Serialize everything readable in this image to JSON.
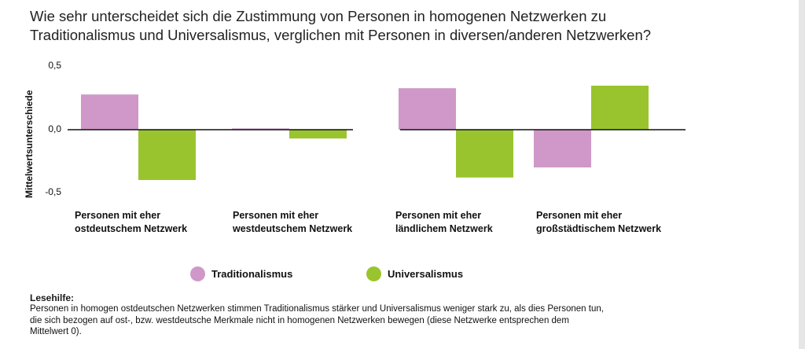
{
  "title_line1": "Wie sehr unterscheidet sich die Zustimmung von Personen in homogenen Netzwerken zu",
  "title_line2": "Traditionalismus und Universalismus, verglichen mit Personen in diversen/anderen Netzwerken?",
  "chart_data": {
    "type": "bar",
    "ylabel": "Mittelwertsunterschiede",
    "ylim": [
      -0.5,
      0.5
    ],
    "yticks": [
      "0,5",
      "0,0",
      "-0,5"
    ],
    "grid": false,
    "legend_position": "bottom",
    "categories": [
      [
        "Personen mit eher",
        "ostdeutschem Netzwerk"
      ],
      [
        "Personen mit eher",
        "westdeutschem Netzwerk"
      ],
      [
        "Personen mit eher",
        "ländlichem Netzwerk"
      ],
      [
        "Personen mit eher",
        "großstädtischem Netzwerk"
      ]
    ],
    "series": [
      {
        "name": "Traditionalismus",
        "color": "#cf98c8",
        "values": [
          0.28,
          0.01,
          0.33,
          -0.3
        ]
      },
      {
        "name": "Universalismus",
        "color": "#99c42e",
        "values": [
          -0.4,
          -0.07,
          -0.38,
          0.35
        ]
      }
    ]
  },
  "legend": {
    "item1": "Traditionalismus",
    "item2": "Universalismus"
  },
  "hint": {
    "title": "Lesehilfe:",
    "line1": "Personen in homogen ostdeutschen Netzwerken stimmen Traditionalismus stärker und Universalismus weniger stark zu, als dies Personen tun,",
    "line2": "die sich bezogen auf ost-, bzw. westdeutsche Merkmale nicht in homogenen Netzwerken bewegen (diese Netzwerke entsprechen dem",
    "line3": "Mittelwert 0)."
  }
}
